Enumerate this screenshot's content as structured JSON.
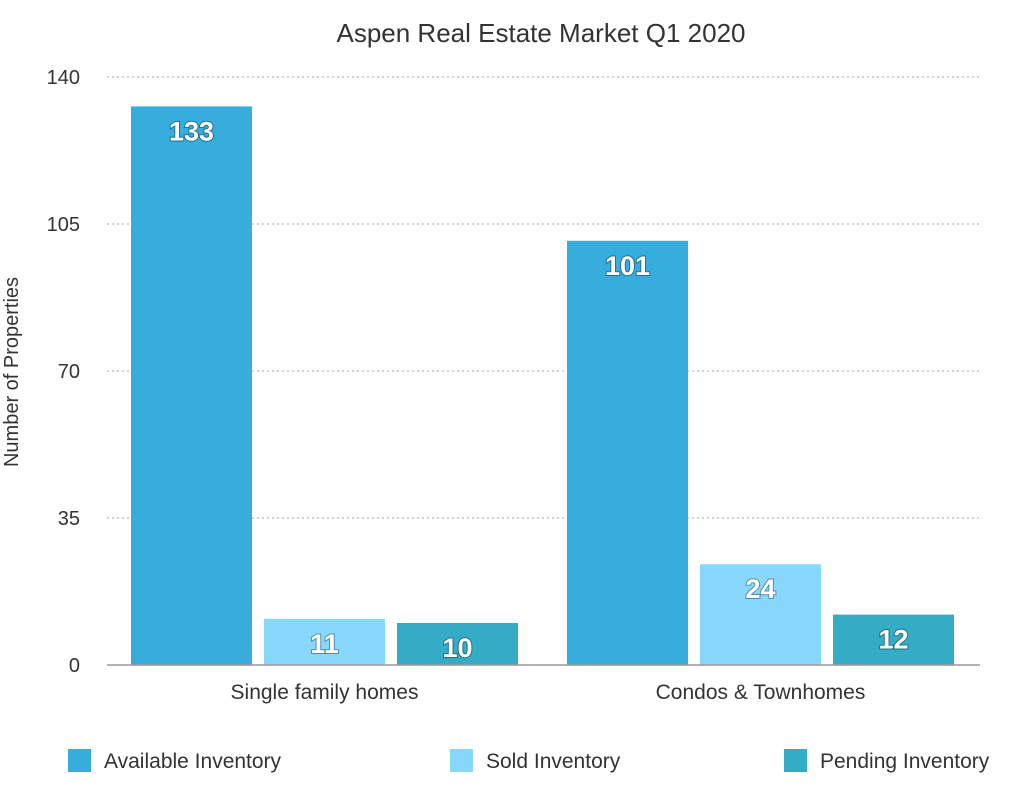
{
  "chart_data": {
    "type": "bar",
    "title": "Aspen Real Estate Market Q1 2020",
    "xlabel": "",
    "ylabel": "Number of Properties",
    "ylim": [
      0,
      140
    ],
    "yticks": [
      0,
      35,
      70,
      105,
      140
    ],
    "grid": true,
    "legend_position": "bottom",
    "categories": [
      "Single family homes",
      "Condos & Townhomes"
    ],
    "series": [
      {
        "name": "Available Inventory",
        "color": "#36ADDC",
        "values": [
          133,
          101
        ]
      },
      {
        "name": "Sold Inventory",
        "color": "#88D8FB",
        "values": [
          11,
          24
        ]
      },
      {
        "name": "Pending Inventory",
        "color": "#35ACC5",
        "values": [
          10,
          12
        ]
      }
    ]
  }
}
